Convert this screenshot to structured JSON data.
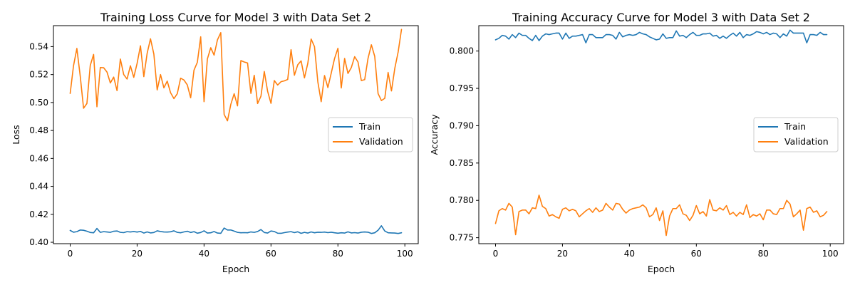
{
  "figure": {
    "colors": {
      "train": "#1f77b4",
      "validation": "#ff7f0e"
    }
  },
  "chart_data": [
    {
      "type": "line",
      "title": "Training Loss Curve for Model 3 with Data Set 2",
      "xlabel": "Epoch",
      "ylabel": "Loss",
      "xlim": [
        -5,
        104
      ],
      "ylim": [
        0.399,
        0.555
      ],
      "xticks": [
        0,
        20,
        40,
        60,
        80,
        100
      ],
      "xtick_labels": [
        "0",
        "20",
        "40",
        "60",
        "80",
        "100"
      ],
      "yticks": [
        0.4,
        0.42,
        0.44,
        0.46,
        0.48,
        0.5,
        0.52,
        0.54
      ],
      "ytick_labels": [
        "0.40",
        "0.42",
        "0.44",
        "0.46",
        "0.48",
        "0.50",
        "0.52",
        "0.54"
      ],
      "grid": false,
      "legend_position": "center-right",
      "legend": [
        "Train",
        "Validation"
      ],
      "series": [
        {
          "name": "Train",
          "color": "#1f77b4",
          "values": [
            0.4085,
            0.4072,
            0.4076,
            0.4088,
            0.4086,
            0.4079,
            0.407,
            0.4068,
            0.4099,
            0.4071,
            0.4076,
            0.4074,
            0.4071,
            0.4079,
            0.4081,
            0.4071,
            0.4069,
            0.4076,
            0.4074,
            0.4077,
            0.4073,
            0.4078,
            0.4066,
            0.4074,
            0.4067,
            0.407,
            0.4082,
            0.4077,
            0.4074,
            0.4073,
            0.4075,
            0.4082,
            0.4071,
            0.4068,
            0.4074,
            0.4079,
            0.407,
            0.4076,
            0.4065,
            0.407,
            0.4082,
            0.4066,
            0.4068,
            0.4077,
            0.4066,
            0.4064,
            0.4102,
            0.4088,
            0.4088,
            0.408,
            0.4071,
            0.4068,
            0.4069,
            0.4068,
            0.4074,
            0.4071,
            0.4077,
            0.4091,
            0.407,
            0.4066,
            0.4081,
            0.4077,
            0.4065,
            0.4064,
            0.4069,
            0.4073,
            0.4076,
            0.4069,
            0.4075,
            0.4064,
            0.4071,
            0.4066,
            0.4074,
            0.4068,
            0.4072,
            0.4071,
            0.4073,
            0.4069,
            0.4072,
            0.4068,
            0.4065,
            0.4068,
            0.4066,
            0.4075,
            0.4067,
            0.4069,
            0.4066,
            0.4072,
            0.4074,
            0.4072,
            0.4063,
            0.4068,
            0.4086,
            0.4118,
            0.4081,
            0.4068,
            0.4067,
            0.4066,
            0.4063,
            0.4068
          ]
        },
        {
          "name": "Validation",
          "color": "#ff7f0e",
          "values": [
            0.5065,
            0.5263,
            0.5387,
            0.519,
            0.4959,
            0.4993,
            0.5265,
            0.5344,
            0.497,
            0.525,
            0.5249,
            0.5218,
            0.514,
            0.5182,
            0.5085,
            0.5311,
            0.52,
            0.5168,
            0.5263,
            0.518,
            0.528,
            0.5406,
            0.5185,
            0.5352,
            0.5456,
            0.5347,
            0.509,
            0.52,
            0.5105,
            0.5153,
            0.507,
            0.5028,
            0.5063,
            0.5174,
            0.5161,
            0.5126,
            0.5034,
            0.5232,
            0.5288,
            0.547,
            0.5006,
            0.5312,
            0.5392,
            0.5339,
            0.5448,
            0.55,
            0.4915,
            0.4869,
            0.4987,
            0.5063,
            0.4976,
            0.53,
            0.529,
            0.5283,
            0.5065,
            0.5195,
            0.4993,
            0.5045,
            0.5222,
            0.508,
            0.4994,
            0.5157,
            0.5125,
            0.5149,
            0.5155,
            0.5165,
            0.5378,
            0.5195,
            0.527,
            0.5298,
            0.5176,
            0.528,
            0.5454,
            0.54,
            0.5148,
            0.5006,
            0.5193,
            0.5107,
            0.521,
            0.5315,
            0.5388,
            0.5104,
            0.5315,
            0.5208,
            0.525,
            0.5328,
            0.529,
            0.5157,
            0.5164,
            0.5316,
            0.5413,
            0.533,
            0.5064,
            0.5014,
            0.503,
            0.5215,
            0.5083,
            0.5245,
            0.5362,
            0.5523
          ]
        }
      ]
    },
    {
      "type": "line",
      "title": "Training Accuracy Curve for Model 3 with Data Set 2",
      "xlabel": "Epoch",
      "ylabel": "Accuracy",
      "xlim": [
        -5,
        104
      ],
      "ylim": [
        0.7742,
        0.8034
      ],
      "xticks": [
        0,
        20,
        40,
        60,
        80,
        100
      ],
      "xtick_labels": [
        "0",
        "20",
        "40",
        "60",
        "80",
        "100"
      ],
      "yticks": [
        0.775,
        0.78,
        0.785,
        0.79,
        0.795,
        0.8
      ],
      "ytick_labels": [
        "0.775",
        "0.780",
        "0.785",
        "0.790",
        "0.795",
        "0.800"
      ],
      "grid": false,
      "legend_position": "center-right",
      "legend": [
        "Train",
        "Validation"
      ],
      "series": [
        {
          "name": "Train",
          "color": "#1f77b4",
          "values": [
            0.8015,
            0.8017,
            0.8021,
            0.802,
            0.8016,
            0.8022,
            0.8018,
            0.8024,
            0.8021,
            0.8021,
            0.8017,
            0.8014,
            0.8021,
            0.8014,
            0.802,
            0.8023,
            0.8022,
            0.8023,
            0.8024,
            0.8024,
            0.8016,
            0.8024,
            0.8017,
            0.802,
            0.802,
            0.8021,
            0.8022,
            0.8011,
            0.8022,
            0.8022,
            0.8018,
            0.8018,
            0.8018,
            0.8022,
            0.8022,
            0.8021,
            0.8016,
            0.8025,
            0.8019,
            0.8021,
            0.8022,
            0.8021,
            0.8022,
            0.8025,
            0.8023,
            0.8022,
            0.8019,
            0.8017,
            0.8015,
            0.8016,
            0.8023,
            0.8017,
            0.8018,
            0.8018,
            0.8027,
            0.802,
            0.8021,
            0.8018,
            0.8022,
            0.8025,
            0.8021,
            0.8021,
            0.8023,
            0.8023,
            0.8024,
            0.802,
            0.8021,
            0.8017,
            0.802,
            0.8017,
            0.8021,
            0.8024,
            0.802,
            0.8025,
            0.8018,
            0.8022,
            0.8021,
            0.8023,
            0.8026,
            0.8025,
            0.8023,
            0.8025,
            0.8022,
            0.8024,
            0.8023,
            0.8018,
            0.8023,
            0.802,
            0.8028,
            0.8024,
            0.8024,
            0.8024,
            0.8024,
            0.8011,
            0.8022,
            0.8022,
            0.8021,
            0.8025,
            0.8022,
            0.8022
          ]
        },
        {
          "name": "Validation",
          "color": "#ff7f0e",
          "values": [
            0.7769,
            0.7786,
            0.7789,
            0.7787,
            0.7796,
            0.7791,
            0.7754,
            0.7785,
            0.7787,
            0.7787,
            0.7782,
            0.779,
            0.7789,
            0.7807,
            0.7792,
            0.7789,
            0.7779,
            0.7781,
            0.7778,
            0.7776,
            0.7788,
            0.779,
            0.7786,
            0.7788,
            0.7786,
            0.7778,
            0.7782,
            0.7786,
            0.7789,
            0.7784,
            0.779,
            0.7785,
            0.7787,
            0.7796,
            0.7791,
            0.7787,
            0.7796,
            0.7795,
            0.7788,
            0.7783,
            0.7787,
            0.7789,
            0.779,
            0.7791,
            0.7794,
            0.779,
            0.7778,
            0.7781,
            0.779,
            0.7773,
            0.7786,
            0.7753,
            0.7779,
            0.7789,
            0.7789,
            0.7794,
            0.7782,
            0.778,
            0.7773,
            0.778,
            0.7793,
            0.7782,
            0.7785,
            0.7779,
            0.7801,
            0.7787,
            0.7786,
            0.779,
            0.7787,
            0.7793,
            0.7781,
            0.7784,
            0.7779,
            0.7784,
            0.7781,
            0.7794,
            0.7777,
            0.7781,
            0.7779,
            0.7782,
            0.7774,
            0.7787,
            0.7787,
            0.7782,
            0.7781,
            0.7789,
            0.7789,
            0.78,
            0.7795,
            0.7778,
            0.7782,
            0.7787,
            0.776,
            0.7789,
            0.7791,
            0.7784,
            0.7786,
            0.7778,
            0.778,
            0.7785
          ]
        }
      ]
    }
  ]
}
